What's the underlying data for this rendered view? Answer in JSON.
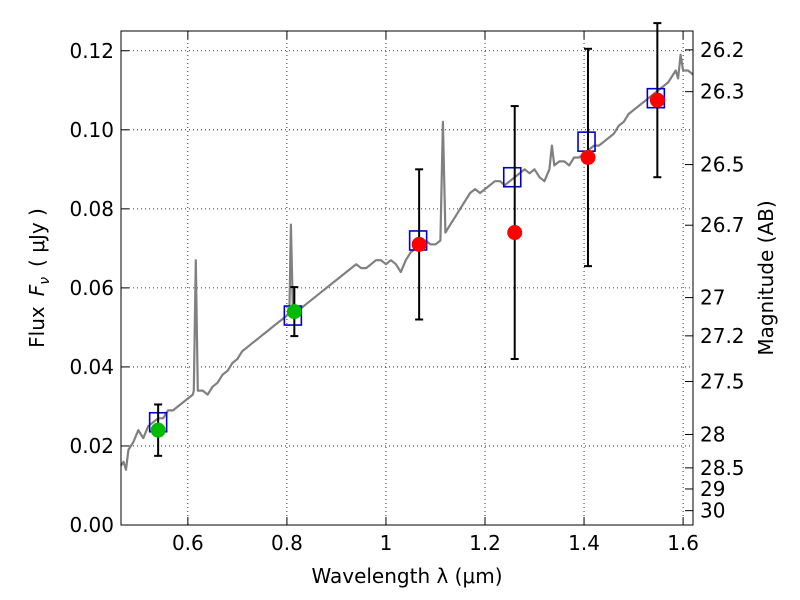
{
  "chart_data": {
    "type": "scatter",
    "xlabel": "Wavelength  λ (μm)",
    "ylabel": "Flux  Fν  ( μJy )",
    "ylabel_parts": {
      "prefix": "Flux",
      "symbol": "F",
      "subscript": "ν",
      "units": "( μJy )"
    },
    "y2label": "Magnitude (AB)",
    "xlim": [
      0.465,
      1.62
    ],
    "ylim": [
      0.0,
      0.125
    ],
    "grid": true,
    "x_ticks": [
      {
        "value": 0.6,
        "label": "0.6"
      },
      {
        "value": 0.8,
        "label": "0.8"
      },
      {
        "value": 1.0,
        "label": "1"
      },
      {
        "value": 1.2,
        "label": "1.2"
      },
      {
        "value": 1.4,
        "label": "1.4"
      },
      {
        "value": 1.6,
        "label": "1.6"
      }
    ],
    "y_ticks": [
      {
        "value": 0.0,
        "label": "0.00"
      },
      {
        "value": 0.02,
        "label": "0.02"
      },
      {
        "value": 0.04,
        "label": "0.04"
      },
      {
        "value": 0.06,
        "label": "0.06"
      },
      {
        "value": 0.08,
        "label": "0.08"
      },
      {
        "value": 0.1,
        "label": "0.10"
      },
      {
        "value": 0.12,
        "label": "0.12"
      }
    ],
    "y2_ticks": [
      {
        "value": 26.2,
        "label": "26.2"
      },
      {
        "value": 26.3,
        "label": "26.3"
      },
      {
        "value": 26.5,
        "label": "26.5"
      },
      {
        "value": 26.7,
        "label": "26.7"
      },
      {
        "value": 27,
        "label": "27"
      },
      {
        "value": 27.2,
        "label": "27.2"
      },
      {
        "value": 27.5,
        "label": "27.5"
      },
      {
        "value": 28,
        "label": "28"
      },
      {
        "value": 28.5,
        "label": "28.5"
      },
      {
        "value": 29,
        "label": "29"
      },
      {
        "value": 30,
        "label": "30"
      }
    ],
    "series": [
      {
        "kind": "line",
        "color": "#808080",
        "points": [
          [
            0.465,
            0.015
          ],
          [
            0.47,
            0.016
          ],
          [
            0.475,
            0.014
          ],
          [
            0.48,
            0.019
          ],
          [
            0.49,
            0.021
          ],
          [
            0.5,
            0.024
          ],
          [
            0.51,
            0.022
          ],
          [
            0.52,
            0.025
          ],
          [
            0.53,
            0.026
          ],
          [
            0.54,
            0.027
          ],
          [
            0.55,
            0.027
          ],
          [
            0.56,
            0.029
          ],
          [
            0.57,
            0.029
          ],
          [
            0.58,
            0.03
          ],
          [
            0.59,
            0.031
          ],
          [
            0.6,
            0.032
          ],
          [
            0.61,
            0.033
          ],
          [
            0.612,
            0.034
          ],
          [
            0.616,
            0.067
          ],
          [
            0.62,
            0.034
          ],
          [
            0.63,
            0.034
          ],
          [
            0.64,
            0.033
          ],
          [
            0.65,
            0.035
          ],
          [
            0.66,
            0.036
          ],
          [
            0.67,
            0.038
          ],
          [
            0.68,
            0.039
          ],
          [
            0.69,
            0.041
          ],
          [
            0.7,
            0.042
          ],
          [
            0.71,
            0.044
          ],
          [
            0.72,
            0.045
          ],
          [
            0.73,
            0.046
          ],
          [
            0.74,
            0.047
          ],
          [
            0.75,
            0.048
          ],
          [
            0.76,
            0.049
          ],
          [
            0.77,
            0.05
          ],
          [
            0.78,
            0.051
          ],
          [
            0.79,
            0.052
          ],
          [
            0.8,
            0.053
          ],
          [
            0.805,
            0.054
          ],
          [
            0.808,
            0.076
          ],
          [
            0.812,
            0.055
          ],
          [
            0.82,
            0.054
          ],
          [
            0.83,
            0.055
          ],
          [
            0.84,
            0.056
          ],
          [
            0.85,
            0.057
          ],
          [
            0.86,
            0.058
          ],
          [
            0.87,
            0.059
          ],
          [
            0.88,
            0.06
          ],
          [
            0.89,
            0.061
          ],
          [
            0.9,
            0.062
          ],
          [
            0.91,
            0.063
          ],
          [
            0.92,
            0.064
          ],
          [
            0.93,
            0.065
          ],
          [
            0.94,
            0.066
          ],
          [
            0.95,
            0.065
          ],
          [
            0.96,
            0.065
          ],
          [
            0.97,
            0.066
          ],
          [
            0.98,
            0.067
          ],
          [
            0.99,
            0.067
          ],
          [
            1.0,
            0.066
          ],
          [
            1.01,
            0.067
          ],
          [
            1.02,
            0.066
          ],
          [
            1.03,
            0.064
          ],
          [
            1.04,
            0.067
          ],
          [
            1.05,
            0.069
          ],
          [
            1.06,
            0.07
          ],
          [
            1.07,
            0.071
          ],
          [
            1.08,
            0.072
          ],
          [
            1.09,
            0.071
          ],
          [
            1.1,
            0.071
          ],
          [
            1.11,
            0.072
          ],
          [
            1.115,
            0.102
          ],
          [
            1.12,
            0.074
          ],
          [
            1.13,
            0.076
          ],
          [
            1.14,
            0.078
          ],
          [
            1.15,
            0.08
          ],
          [
            1.16,
            0.082
          ],
          [
            1.17,
            0.084
          ],
          [
            1.18,
            0.085
          ],
          [
            1.19,
            0.084
          ],
          [
            1.2,
            0.085
          ],
          [
            1.21,
            0.086
          ],
          [
            1.22,
            0.087
          ],
          [
            1.23,
            0.087
          ],
          [
            1.24,
            0.086
          ],
          [
            1.25,
            0.087
          ],
          [
            1.26,
            0.088
          ],
          [
            1.27,
            0.089
          ],
          [
            1.28,
            0.09
          ],
          [
            1.29,
            0.089
          ],
          [
            1.3,
            0.09
          ],
          [
            1.31,
            0.088
          ],
          [
            1.32,
            0.087
          ],
          [
            1.33,
            0.09
          ],
          [
            1.335,
            0.096
          ],
          [
            1.34,
            0.091
          ],
          [
            1.35,
            0.092
          ],
          [
            1.36,
            0.092
          ],
          [
            1.37,
            0.091
          ],
          [
            1.38,
            0.093
          ],
          [
            1.39,
            0.093
          ],
          [
            1.4,
            0.094
          ],
          [
            1.41,
            0.095
          ],
          [
            1.42,
            0.096
          ],
          [
            1.43,
            0.096
          ],
          [
            1.44,
            0.097
          ],
          [
            1.45,
            0.098
          ],
          [
            1.46,
            0.099
          ],
          [
            1.47,
            0.101
          ],
          [
            1.48,
            0.102
          ],
          [
            1.49,
            0.104
          ],
          [
            1.5,
            0.105
          ],
          [
            1.51,
            0.106
          ],
          [
            1.52,
            0.107
          ],
          [
            1.53,
            0.108
          ],
          [
            1.54,
            0.109
          ],
          [
            1.55,
            0.11
          ],
          [
            1.56,
            0.111
          ],
          [
            1.57,
            0.112
          ],
          [
            1.58,
            0.114
          ],
          [
            1.585,
            0.115
          ],
          [
            1.59,
            0.113
          ],
          [
            1.595,
            0.119
          ],
          [
            1.6,
            0.115
          ],
          [
            1.61,
            0.115
          ],
          [
            1.62,
            0.114
          ]
        ]
      },
      {
        "kind": "open-square",
        "color": "#0000cc",
        "points": [
          [
            0.54,
            0.026
          ],
          [
            0.812,
            0.053
          ],
          [
            1.065,
            0.072
          ],
          [
            1.255,
            0.088
          ],
          [
            1.405,
            0.097
          ],
          [
            1.545,
            0.108
          ]
        ]
      },
      {
        "kind": "circle",
        "color": "#00bb00",
        "points": [
          {
            "x": 0.54,
            "y": 0.024,
            "err": 0.0065
          },
          {
            "x": 0.815,
            "y": 0.054,
            "err": 0.0062
          }
        ]
      },
      {
        "kind": "circle",
        "color": "#ff0000",
        "points": [
          {
            "x": 1.067,
            "y": 0.071,
            "err": 0.019
          },
          {
            "x": 1.26,
            "y": 0.074,
            "err": 0.032
          },
          {
            "x": 1.408,
            "y": 0.093,
            "err": 0.0275
          },
          {
            "x": 1.548,
            "y": 0.1075,
            "err": 0.0195
          }
        ]
      }
    ]
  }
}
